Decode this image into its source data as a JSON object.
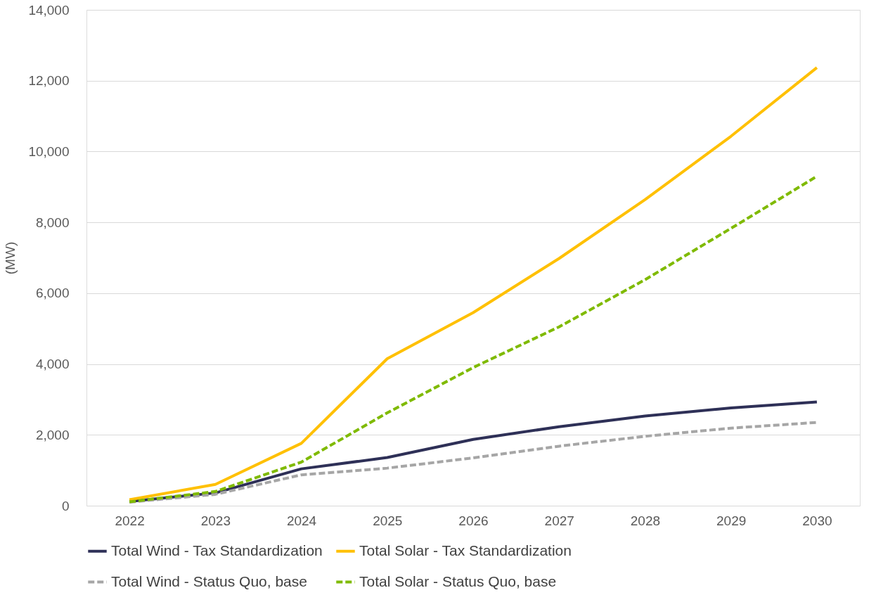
{
  "chart_data": {
    "type": "line",
    "ylabel": "(MW)",
    "categories": [
      "2022",
      "2023",
      "2024",
      "2025",
      "2026",
      "2027",
      "2028",
      "2029",
      "2030"
    ],
    "ylim": [
      0,
      14000
    ],
    "yticks": [
      0,
      {
        "value": 2000,
        "label": "2,000"
      },
      {
        "value": 4000,
        "label": "4,000"
      },
      {
        "value": 6000,
        "label": "6,000"
      },
      {
        "value": 8000,
        "label": "8,000"
      },
      {
        "value": 10000,
        "label": "10,000"
      },
      {
        "value": 12000,
        "label": "12,000"
      },
      {
        "value": 14000,
        "label": "14,000"
      }
    ],
    "grid": "y",
    "legend": "bottom",
    "series": [
      {
        "name": "Total Wind - Tax Standardization",
        "color": "#2e3057",
        "line_style": "solid",
        "values": [
          120,
          360,
          1040,
          1360,
          1870,
          2230,
          2530,
          2760,
          2930
        ]
      },
      {
        "name": "Total Solar - Tax Standardization",
        "color": "#ffc000",
        "line_style": "solid",
        "values": [
          170,
          600,
          1760,
          4150,
          5450,
          6980,
          8640,
          10430,
          12370
        ]
      },
      {
        "name": "Total Wind - Status Quo, base",
        "color": "#a6a6a6",
        "line_style": "dashed",
        "values": [
          100,
          320,
          870,
          1060,
          1350,
          1680,
          1960,
          2190,
          2350
        ]
      },
      {
        "name": "Total Solar - Status Quo, base",
        "color": "#7fba00",
        "line_style": "dashed",
        "values": [
          110,
          400,
          1230,
          2620,
          3900,
          5050,
          6380,
          7830,
          9300
        ]
      }
    ]
  }
}
